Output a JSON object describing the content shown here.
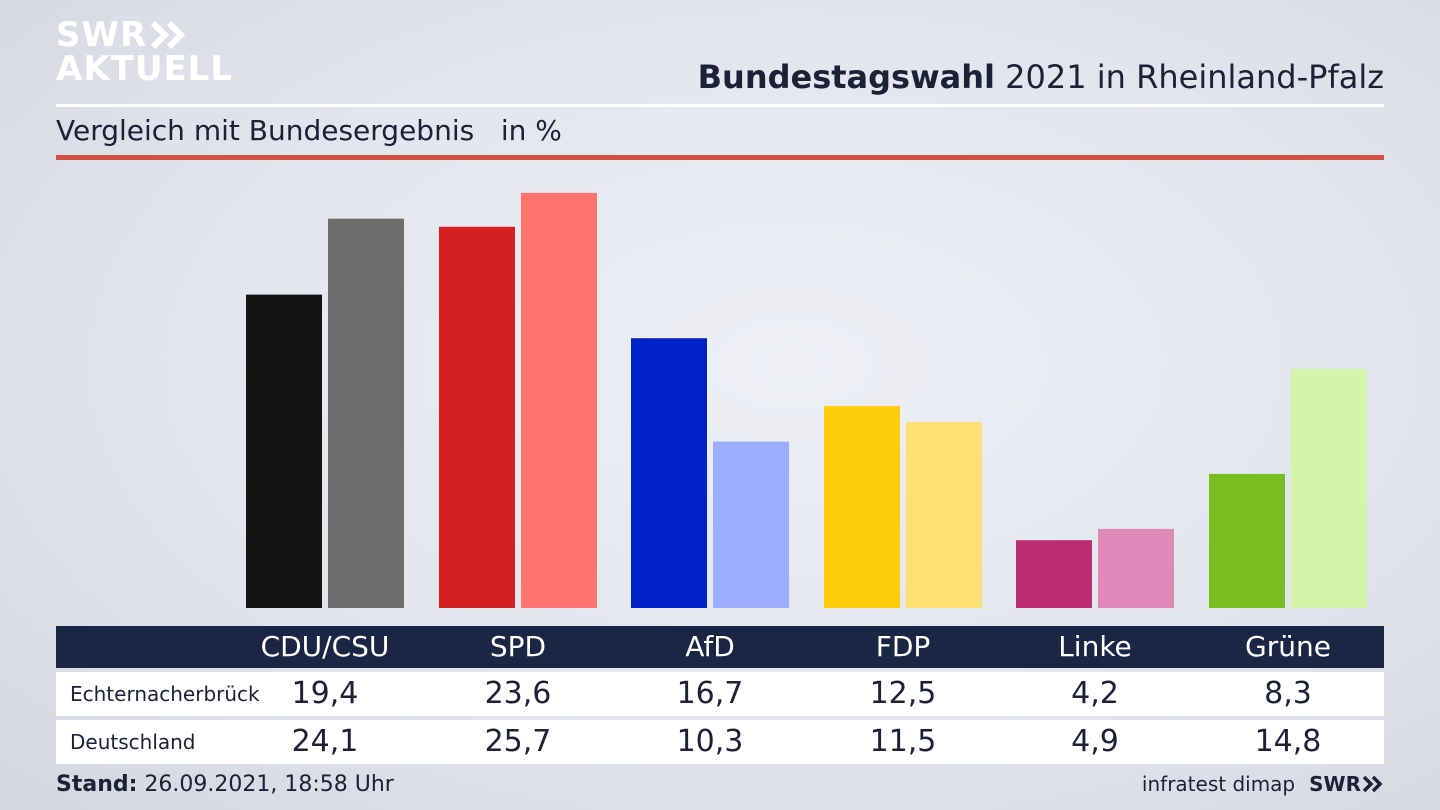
{
  "logo": {
    "line1": "SWR",
    "line2": "AKTUELL"
  },
  "header": {
    "title_bold": "Bundestagswahl",
    "title_rest": " 2021 in Rheinland-Pfalz"
  },
  "subtitle": "Vergleich mit Bundesergebnis   in %",
  "table": {
    "columns": [
      "CDU/CSU",
      "SPD",
      "AfD",
      "FDP",
      "Linke",
      "Grüne"
    ],
    "rows": [
      {
        "label": "Echternacherbrück",
        "values": [
          "19,4",
          "23,6",
          "16,7",
          "12,5",
          "4,2",
          "8,3"
        ]
      },
      {
        "label": "Deutschland",
        "values": [
          "24,1",
          "25,7",
          "10,3",
          "11,5",
          "4,9",
          "14,8"
        ]
      }
    ]
  },
  "footer": {
    "stand_label": "Stand:",
    "stand_value": " 26.09.2021, 18:58 Uhr",
    "source": "infratest dimap",
    "brand": "SWR"
  },
  "chart_data": {
    "type": "bar",
    "categories": [
      "CDU/CSU",
      "SPD",
      "AfD",
      "FDP",
      "Linke",
      "Grüne"
    ],
    "series": [
      {
        "name": "Echternacherbrück",
        "values": [
          19.4,
          23.6,
          16.7,
          12.5,
          4.2,
          8.3
        ],
        "colors": [
          "#141414",
          "#d61f1f",
          "#0020c8",
          "#ffcc0a",
          "#bd2d72",
          "#78be20"
        ]
      },
      {
        "name": "Deutschland",
        "values": [
          24.1,
          25.7,
          10.3,
          11.5,
          4.9,
          14.8
        ],
        "colors": [
          "#6f6d6b",
          "#ff726d",
          "#9dacff",
          "#fde073",
          "#e089b8",
          "#d4f5a8"
        ]
      }
    ],
    "ylim": [
      0,
      26
    ]
  }
}
